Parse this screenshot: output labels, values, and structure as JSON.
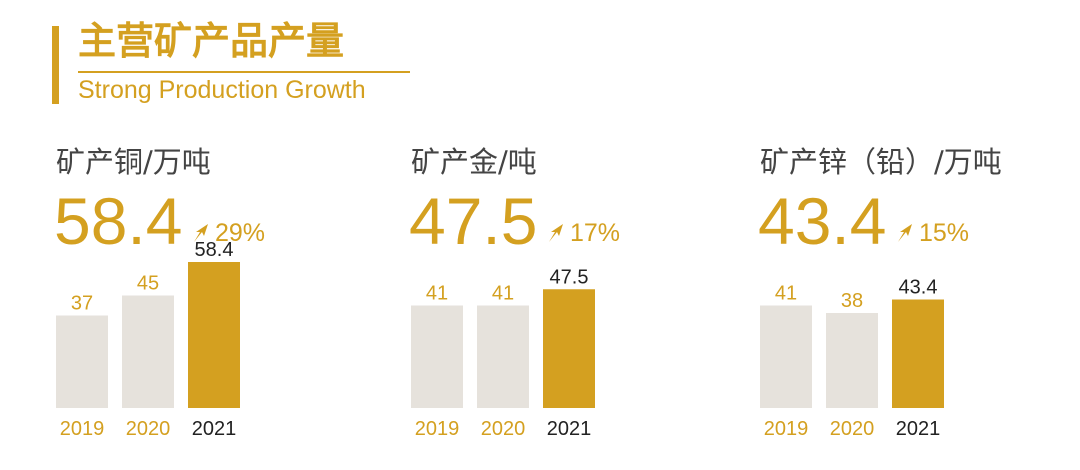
{
  "header": {
    "title": "主营矿产品产量",
    "subtitle": "Strong Production Growth"
  },
  "colors": {
    "accent": "#d4a020",
    "muted_bar": "#e6e2dc",
    "dark_text": "#222222"
  },
  "panels": [
    {
      "label": "矿产铜/万吨",
      "value": "58.4",
      "growth": "29%"
    },
    {
      "label": "矿产金/吨",
      "value": "47.5",
      "growth": "17%"
    },
    {
      "label": "矿产锌（铅）/万吨",
      "value": "43.4",
      "growth": "15%"
    }
  ],
  "chart_data": [
    {
      "type": "bar",
      "categories": [
        "2019",
        "2020",
        "2021"
      ],
      "values": [
        37,
        45,
        58.4
      ],
      "labels": [
        "37",
        "45",
        "58.4"
      ],
      "highlight_index": 2
    },
    {
      "type": "bar",
      "categories": [
        "2019",
        "2020",
        "2021"
      ],
      "values": [
        41,
        41,
        47.5
      ],
      "labels": [
        "41",
        "41",
        "47.5"
      ],
      "highlight_index": 2
    },
    {
      "type": "bar",
      "categories": [
        "2019",
        "2020",
        "2021"
      ],
      "values": [
        41,
        38,
        43.4
      ],
      "labels": [
        "41",
        "38",
        "43.4"
      ],
      "highlight_index": 2
    }
  ]
}
